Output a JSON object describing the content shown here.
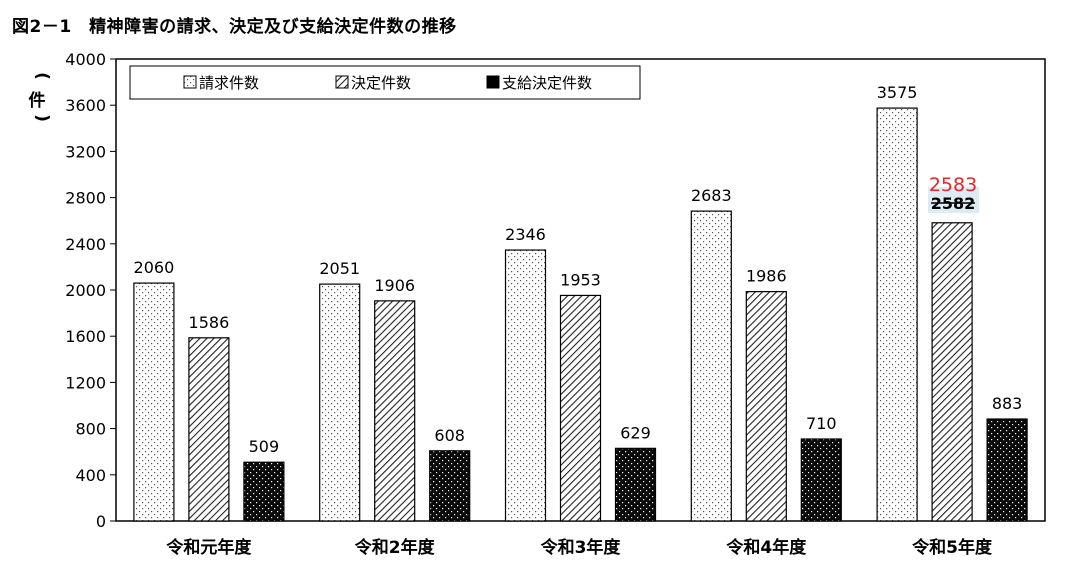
{
  "figure": {
    "title": "図2－1　精神障害の請求、決定及び支給決定件数の推移"
  },
  "chart_data": {
    "type": "bar",
    "title": "図2－1　精神障害の請求、決定及び支給決定件数の推移",
    "xlabel": "",
    "ylabel": "件",
    "ylim": [
      0,
      4000
    ],
    "yticks": [
      0,
      400,
      800,
      1200,
      1600,
      2000,
      2400,
      2800,
      3200,
      3600,
      4000
    ],
    "grid": false,
    "legend_position": "top-left",
    "categories": [
      "令和元年度",
      "令和2年度",
      "令和3年度",
      "令和4年度",
      "令和5年度"
    ],
    "series": [
      {
        "name": "請求件数",
        "values": [
          2060,
          2051,
          2346,
          2683,
          3575
        ],
        "pattern": "sparse-dots"
      },
      {
        "name": "決定件数",
        "values": [
          1586,
          1906,
          1953,
          1986,
          2582
        ],
        "pattern": "diagonal-hatch"
      },
      {
        "name": "支給決定件数",
        "values": [
          509,
          608,
          629,
          710,
          883
        ],
        "pattern": "black-dots"
      }
    ],
    "annotations": [
      {
        "category": "令和5年度",
        "series": "決定件数",
        "old_value": "2582",
        "corrected_value": "2583",
        "style": "strikethrough-with-red-correction",
        "color": "#e8242a",
        "highlight": "#dcebf4"
      }
    ]
  }
}
